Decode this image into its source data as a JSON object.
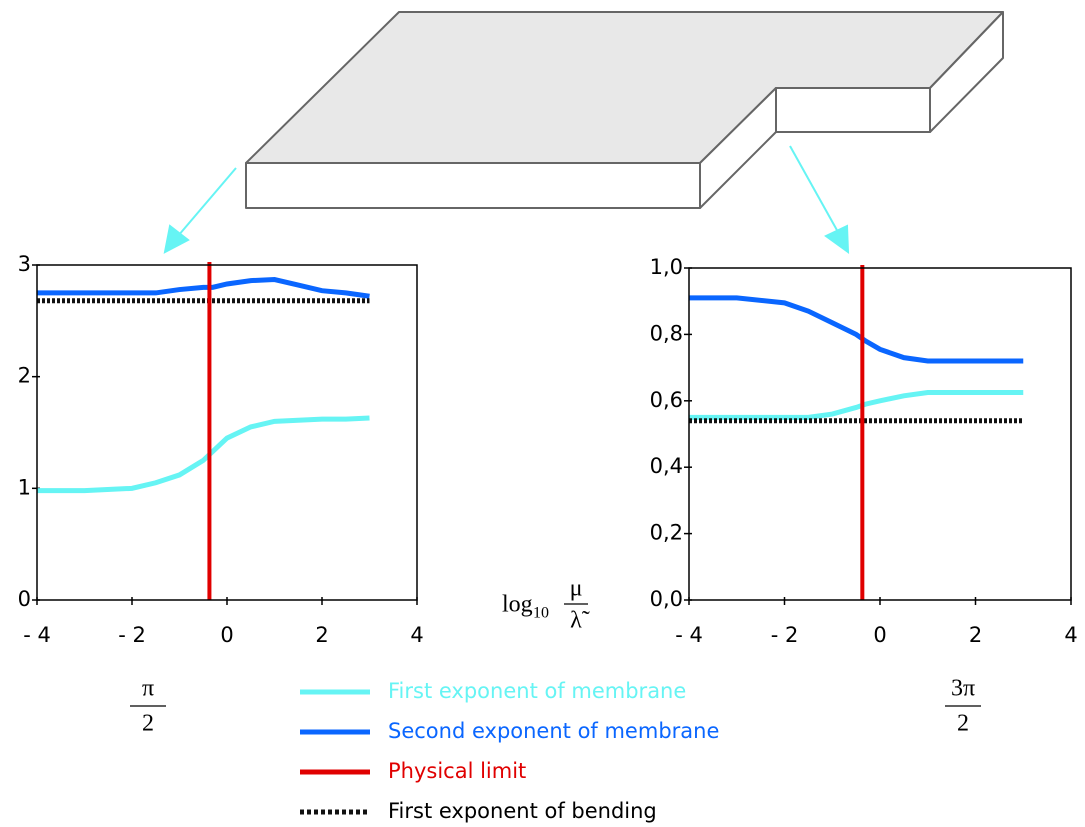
{
  "legend": [
    {
      "name": "First exponent of membrane",
      "color": "#66f4f4"
    },
    {
      "name": "Second exponent of membrane",
      "color": "#0a66ff"
    },
    {
      "name": "Physical limit",
      "color": "#e00000"
    },
    {
      "name": "First exponent of bending",
      "color": "#111111",
      "dashed": true
    }
  ],
  "x_label": {
    "base": "log",
    "subscript": "10",
    "numerator": "μ",
    "denominator": "λ̃"
  },
  "chart_data": [
    {
      "type": "line",
      "caption": {
        "numerator": "π",
        "denominator": "2"
      },
      "x": [
        -4,
        -3,
        -2,
        -1.5,
        -1,
        -0.5,
        -0.3,
        0,
        0.5,
        1,
        1.5,
        2,
        2.5,
        3
      ],
      "series": [
        {
          "values": [
            0.98,
            0.98,
            1.0,
            1.05,
            1.12,
            1.25,
            1.33,
            1.45,
            1.55,
            1.6,
            1.61,
            1.62,
            1.62,
            1.63
          ]
        },
        {
          "values": [
            2.75,
            2.75,
            2.75,
            2.75,
            2.78,
            2.8,
            2.8,
            2.83,
            2.86,
            2.87,
            2.82,
            2.77,
            2.75,
            2.72
          ]
        },
        {
          "values": [
            2.68,
            2.68,
            2.68,
            2.68,
            2.68,
            2.68,
            2.68,
            2.68,
            2.68,
            2.68,
            2.68,
            2.68,
            2.68,
            2.68
          ]
        }
      ],
      "vline": -0.37,
      "xlim": [
        -4,
        4
      ],
      "xticks": [
        {
          "value": -4,
          "label": "- 4"
        },
        {
          "value": -2,
          "label": "- 2"
        },
        0,
        2,
        4
      ],
      "ylim": [
        0,
        3
      ],
      "yticks": [
        0,
        1,
        2,
        3
      ]
    },
    {
      "type": "line",
      "caption": {
        "numerator": "3π",
        "denominator": "2"
      },
      "x": [
        -4,
        -3,
        -2,
        -1.5,
        -1,
        -0.5,
        -0.3,
        0,
        0.5,
        1,
        1.5,
        2,
        2.5,
        3
      ],
      "series": [
        {
          "values": [
            0.55,
            0.55,
            0.55,
            0.55,
            0.56,
            0.58,
            0.59,
            0.6,
            0.615,
            0.625,
            0.625,
            0.625,
            0.625,
            0.625
          ]
        },
        {
          "values": [
            0.91,
            0.91,
            0.895,
            0.87,
            0.835,
            0.8,
            0.78,
            0.755,
            0.73,
            0.72,
            0.72,
            0.72,
            0.72,
            0.72
          ]
        },
        {
          "values": [
            0.54,
            0.54,
            0.54,
            0.54,
            0.54,
            0.54,
            0.54,
            0.54,
            0.54,
            0.54,
            0.54,
            0.54,
            0.54,
            0.54
          ]
        }
      ],
      "vline": -0.37,
      "xlim": [
        -4,
        4
      ],
      "xticks": [
        {
          "value": -4,
          "label": "- 4"
        },
        {
          "value": -2,
          "label": "- 2"
        },
        0,
        2,
        4
      ],
      "ylim": [
        0,
        1
      ],
      "yticks": [
        {
          "value": 0,
          "label": "0,0"
        },
        {
          "value": 0.2,
          "label": "0,2"
        },
        {
          "value": 0.4,
          "label": "0,4"
        },
        {
          "value": 0.6,
          "label": "0,6"
        },
        {
          "value": 0.8,
          "label": "0,8"
        },
        {
          "value": 1,
          "label": "1,0"
        }
      ]
    }
  ]
}
